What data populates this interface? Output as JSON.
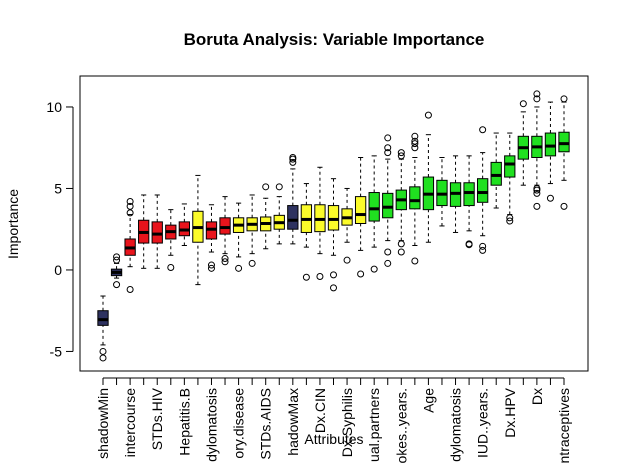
{
  "chart_data": {
    "type": "box",
    "title": "Boruta Analysis: Variable Importance",
    "xlabel": "Attributes",
    "ylabel": "Importance",
    "ylim": [
      -6.2,
      11.9
    ],
    "yticks": [
      -5,
      0,
      5,
      10
    ],
    "colors": {
      "shadow": "#2e3260",
      "rejected": "#e8141c",
      "tentative": "#fbfb2a",
      "confirmed": "#20e020"
    },
    "boxes": [
      {
        "label": "shadowMin",
        "status": "shadow",
        "whisker_low": -4.6,
        "q1": -3.4,
        "median": -3.05,
        "q3": -2.5,
        "whisker_high": -1.6,
        "outliers": [
          -5.0,
          -5.4
        ]
      },
      {
        "label": "",
        "status": "shadow",
        "whisker_low": -0.5,
        "q1": -0.35,
        "median": -0.15,
        "q3": 0.05,
        "whisker_high": 0.4,
        "outliers": [
          -0.9,
          0.6,
          0.8
        ]
      },
      {
        "label": "intercourse",
        "status": "rejected",
        "whisker_low": 0.2,
        "q1": 0.9,
        "median": 1.35,
        "q3": 1.9,
        "whisker_high": 3.4,
        "outliers": [
          -1.2,
          3.5,
          3.9,
          4.2
        ]
      },
      {
        "label": "",
        "status": "rejected",
        "whisker_low": 0.1,
        "q1": 1.65,
        "median": 2.3,
        "q3": 3.05,
        "whisker_high": 4.6,
        "outliers": []
      },
      {
        "label": "STDs.HIV",
        "status": "rejected",
        "whisker_low": 0.1,
        "q1": 1.65,
        "median": 2.2,
        "q3": 2.95,
        "whisker_high": 4.6,
        "outliers": []
      },
      {
        "label": "",
        "status": "rejected",
        "whisker_low": 0.9,
        "q1": 1.9,
        "median": 2.35,
        "q3": 2.75,
        "whisker_high": 3.7,
        "outliers": [
          0.15
        ]
      },
      {
        "label": "Hepatitis.B",
        "status": "rejected",
        "whisker_low": 1.5,
        "q1": 2.1,
        "median": 2.45,
        "q3": 2.95,
        "whisker_high": 4.05,
        "outliers": []
      },
      {
        "label": "",
        "status": "tentative",
        "whisker_low": -0.9,
        "q1": 1.7,
        "median": 2.6,
        "q3": 3.6,
        "whisker_high": 5.8,
        "outliers": []
      },
      {
        "label": "dylomatosis",
        "status": "rejected",
        "whisker_low": 1.1,
        "q1": 1.9,
        "median": 2.5,
        "q3": 2.95,
        "whisker_high": 4.0,
        "outliers": [
          0.1,
          0.3
        ]
      },
      {
        "label": "",
        "status": "rejected",
        "whisker_low": 1.0,
        "q1": 2.2,
        "median": 2.6,
        "q3": 3.2,
        "whisker_high": 4.5,
        "outliers": [
          0.5,
          0.7
        ]
      },
      {
        "label": "ory.disease",
        "status": "tentative",
        "whisker_low": 0.8,
        "q1": 2.3,
        "median": 2.75,
        "q3": 3.2,
        "whisker_high": 4.1,
        "outliers": [
          0.1
        ]
      },
      {
        "label": "",
        "status": "tentative",
        "whisker_low": 1.0,
        "q1": 2.4,
        "median": 2.8,
        "q3": 3.2,
        "whisker_high": 4.6,
        "outliers": [
          0.4
        ]
      },
      {
        "label": "STDs.AIDS",
        "status": "tentative",
        "whisker_low": 1.3,
        "q1": 2.4,
        "median": 2.85,
        "q3": 3.25,
        "whisker_high": 4.4,
        "outliers": [
          5.1
        ]
      },
      {
        "label": "",
        "status": "tentative",
        "whisker_low": 1.6,
        "q1": 2.5,
        "median": 2.9,
        "q3": 3.35,
        "whisker_high": 4.5,
        "outliers": [
          5.1
        ]
      },
      {
        "label": "hadowMax",
        "status": "shadow",
        "whisker_low": 1.6,
        "q1": 2.5,
        "median": 3.05,
        "q3": 3.95,
        "whisker_high": 6.2,
        "outliers": [
          6.6,
          6.8,
          6.9
        ]
      },
      {
        "label": "",
        "status": "tentative",
        "whisker_low": 1.4,
        "q1": 2.3,
        "median": 3.1,
        "q3": 4.0,
        "whisker_high": 5.3,
        "outliers": [
          -0.45
        ]
      },
      {
        "label": "Dx.CIN",
        "status": "tentative",
        "whisker_low": 1.0,
        "q1": 2.35,
        "median": 3.1,
        "q3": 4.0,
        "whisker_high": 6.3,
        "outliers": [
          -0.4
        ]
      },
      {
        "label": "",
        "status": "tentative",
        "whisker_low": 0.9,
        "q1": 2.45,
        "median": 3.1,
        "q3": 3.95,
        "whisker_high": 5.6,
        "outliers": [
          -0.3,
          -1.1
        ]
      },
      {
        "label": "Dx.Syphilis",
        "status": "tentative",
        "whisker_low": 1.7,
        "q1": 2.75,
        "median": 3.2,
        "q3": 3.75,
        "whisker_high": 5.0,
        "outliers": [
          0.6
        ]
      },
      {
        "label": "",
        "status": "tentative",
        "whisker_low": 1.2,
        "q1": 2.85,
        "median": 3.4,
        "q3": 4.5,
        "whisker_high": 6.9,
        "outliers": [
          -0.25
        ]
      },
      {
        "label": "ual.partners",
        "status": "confirmed",
        "whisker_low": 1.4,
        "q1": 3.0,
        "median": 3.75,
        "q3": 4.75,
        "whisker_high": 7.0,
        "outliers": [
          0.05
        ]
      },
      {
        "label": "",
        "status": "confirmed",
        "whisker_low": 1.8,
        "q1": 3.2,
        "median": 3.85,
        "q3": 4.7,
        "whisker_high": 6.8,
        "outliers": [
          0.4,
          1.1,
          7.2,
          7.5,
          8.1
        ]
      },
      {
        "label": "okes..years.",
        "status": "confirmed",
        "whisker_low": 1.8,
        "q1": 3.7,
        "median": 4.3,
        "q3": 4.9,
        "whisker_high": 6.8,
        "outliers": [
          1.1,
          1.6,
          7.0,
          7.2
        ]
      },
      {
        "label": "",
        "status": "confirmed",
        "whisker_low": 1.5,
        "q1": 3.75,
        "median": 4.25,
        "q3": 5.1,
        "whisker_high": 6.9,
        "outliers": [
          0.55,
          7.5,
          7.75,
          7.9,
          8.2
        ]
      },
      {
        "label": "Age",
        "status": "confirmed",
        "whisker_low": 1.7,
        "q1": 3.7,
        "median": 4.65,
        "q3": 5.7,
        "whisker_high": 8.3,
        "outliers": [
          9.5
        ]
      },
      {
        "label": "",
        "status": "confirmed",
        "whisker_low": 2.7,
        "q1": 3.95,
        "median": 4.65,
        "q3": 5.5,
        "whisker_high": 6.9,
        "outliers": []
      },
      {
        "label": "dylomatosis",
        "status": "confirmed",
        "whisker_low": 2.3,
        "q1": 3.9,
        "median": 4.7,
        "q3": 5.35,
        "whisker_high": 7.0,
        "outliers": []
      },
      {
        "label": "",
        "status": "confirmed",
        "whisker_low": 2.4,
        "q1": 3.95,
        "median": 4.75,
        "q3": 5.35,
        "whisker_high": 7.0,
        "outliers": [
          1.55,
          1.6
        ]
      },
      {
        "label": "IUD..years.",
        "status": "confirmed",
        "whisker_low": 2.1,
        "q1": 4.15,
        "median": 4.75,
        "q3": 5.6,
        "whisker_high": 7.2,
        "outliers": [
          1.2,
          1.45,
          8.6
        ]
      },
      {
        "label": "",
        "status": "confirmed",
        "whisker_low": 3.8,
        "q1": 5.2,
        "median": 5.8,
        "q3": 6.6,
        "whisker_high": 8.4,
        "outliers": []
      },
      {
        "label": "Dx.HPV",
        "status": "confirmed",
        "whisker_low": 3.4,
        "q1": 5.7,
        "median": 6.5,
        "q3": 7.0,
        "whisker_high": 8.4,
        "outliers": [
          3.0,
          3.2
        ]
      },
      {
        "label": "",
        "status": "confirmed",
        "whisker_low": 5.2,
        "q1": 6.8,
        "median": 7.5,
        "q3": 8.2,
        "whisker_high": 9.7,
        "outliers": [
          10.2
        ]
      },
      {
        "label": "Dx",
        "status": "confirmed",
        "whisker_low": 5.2,
        "q1": 6.9,
        "median": 7.55,
        "q3": 8.2,
        "whisker_high": 10.0,
        "outliers": [
          3.9,
          4.7,
          4.9,
          5.0,
          10.5,
          10.8
        ]
      },
      {
        "label": "",
        "status": "confirmed",
        "whisker_low": 5.3,
        "q1": 7.0,
        "median": 7.6,
        "q3": 8.4,
        "whisker_high": 10.3,
        "outliers": [
          4.4
        ]
      },
      {
        "label": "ntraceptives",
        "status": "confirmed",
        "whisker_low": 5.5,
        "q1": 7.25,
        "median": 7.75,
        "q3": 8.45,
        "whisker_high": 10.3,
        "outliers": [
          3.9,
          10.5
        ]
      }
    ]
  }
}
